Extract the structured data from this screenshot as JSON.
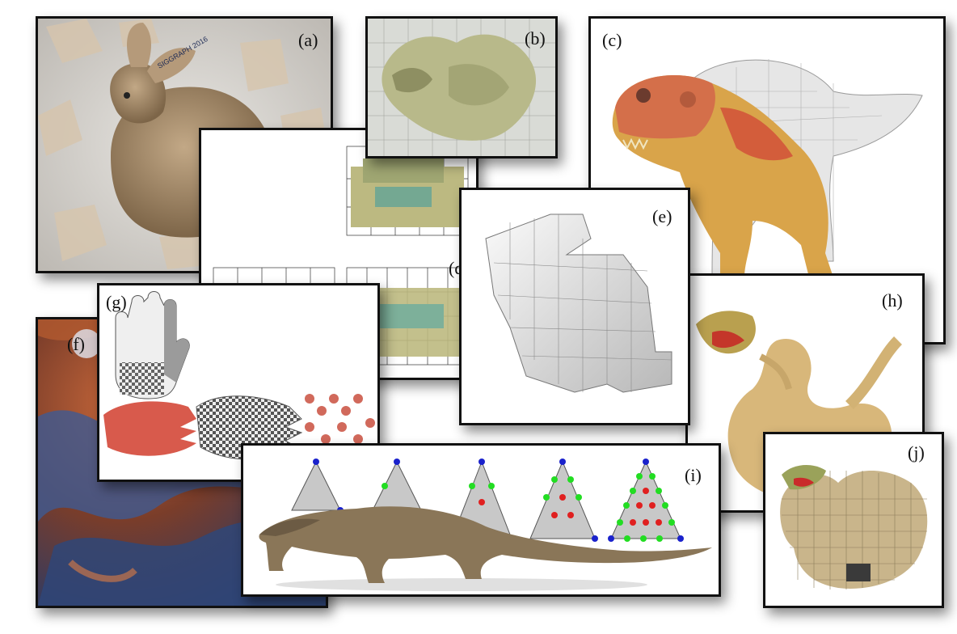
{
  "panels": {
    "a": {
      "label": "(a)",
      "description_icon": "bunny-icon",
      "stamp_text": "SIGGRAPH 2016"
    },
    "b": {
      "label": "(b)",
      "description_icon": "dragon-grid-icon"
    },
    "c": {
      "label": "(c)",
      "description_icon": "trex-icon"
    },
    "d": {
      "label": "(d)",
      "description_icon": "voxel-car-icon"
    },
    "e": {
      "label": "(e)",
      "description_icon": "voxel-bunny-icon"
    },
    "f": {
      "label": "(f)",
      "description_icon": "rock-texture-icon"
    },
    "g": {
      "label": "(g)",
      "description_icon": "hand-icon"
    },
    "h": {
      "label": "(h)",
      "description_icon": "dragon-icon"
    },
    "i": {
      "label": "(i)",
      "description_icon": "lizard-icon"
    },
    "j": {
      "label": "(j)",
      "description_icon": "voxel-dragon-icon"
    }
  },
  "colors": {
    "frame": "#111111",
    "bunny": "#a98e6c",
    "dragon_b": "#b8b98a",
    "trex_skin": "#d9a44a",
    "trex_red": "#d2553a",
    "car_voxel": "#b9b77e",
    "rock_orange": "#b0552e",
    "rock_blue": "#3f5a8c",
    "hand_red": "#d85a4c",
    "dragon_gold": "#d8b77a",
    "lizard": "#8a7658",
    "tri_red": "#e02020",
    "tri_green": "#22dd22",
    "tri_blue": "#1a22cc",
    "tri_fill": "#c8c8c8"
  }
}
